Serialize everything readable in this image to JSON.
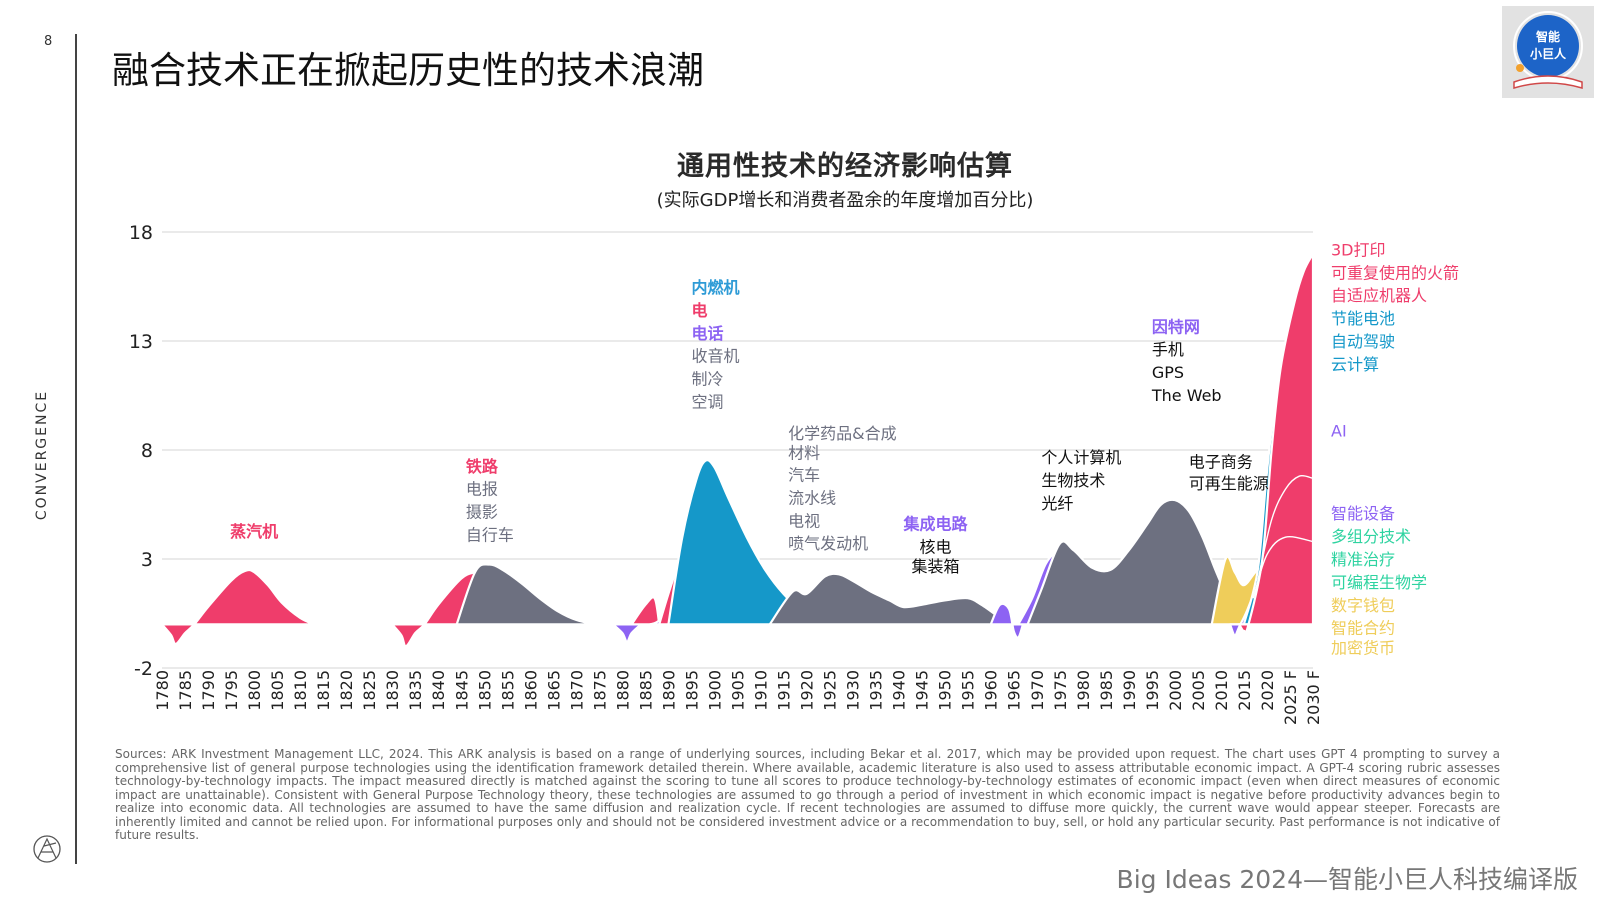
{
  "page": {
    "page_number": "8",
    "side_label": "CONVERGENCE",
    "title": "融合技术正在掀起历史性的技术浪潮",
    "badge_text_1": "智能",
    "badge_text_2": "小巨人",
    "sources": "Sources: ARK Investment Management LLC, 2024. This ARK analysis is based on a range of underlying sources, including Bekar et al. 2017, which may be provided upon request. The chart uses GPT 4 prompting to survey a comprehensive list of general purpose technologies using the identification framework detailed therein. Where available, academic literature is also used to assess attributable economic impact. A GPT-4 scoring rubric assesses technology-by-technology impacts. The impact measured directly is matched against the scoring to tune all scores to produce technology-by-technology estimates of economic impact (even when direct measures of economic impact are unattainable). Consistent with General Purpose Technology theory, these technologies are assumed to go through a period of investment in which economic impact is negative before productivity advances begin to realize into economic data. All technologies are assumed to have the same diffusion and realization cycle. If recent technologies are assumed to diffuse more quickly, the current wave would appear steeper. Forecasts are inherently limited and cannot be relied upon. For informational purposes only and should not be considered investment advice or a recommendation to buy, sell, or hold any particular security. Past performance is not indicative of future results.",
    "footer": "Big Ideas 2024—智能小巨人科技编译版"
  },
  "colors": {
    "pink": "#ef3d6b",
    "purple": "#8d63f3",
    "blue": "#1598c9",
    "gray": "#6d7080",
    "yellow": "#efcd5a",
    "green": "#2ed3a0",
    "blue_label": "#2e9bd6"
  },
  "chart_data": {
    "type": "area",
    "title": "通用性技术的经济影响估算",
    "subtitle": "(实际GDP增长和消费者盈余的年度增加百分比)",
    "ylim": [
      -2,
      18
    ],
    "y_ticks": [
      "18",
      "13",
      "8",
      "3",
      "-2"
    ],
    "x_ticks": [
      "1780",
      "1785",
      "1790",
      "1795",
      "1800",
      "1805",
      "1810",
      "1815",
      "1820",
      "1825",
      "1830",
      "1835",
      "1840",
      "1845",
      "1850",
      "1855",
      "1860",
      "1865",
      "1870",
      "1875",
      "1880",
      "1885",
      "1890",
      "1895",
      "1900",
      "1905",
      "1910",
      "1915",
      "1920",
      "1925",
      "1930",
      "1935",
      "1940",
      "1945",
      "1950",
      "1955",
      "1960",
      "1965",
      "1970",
      "1975",
      "1980",
      "1985",
      "1990",
      "1995",
      "2000",
      "2005",
      "2010",
      "2015",
      "2020",
      "2025 F",
      "2030 F"
    ],
    "grid": true,
    "series": [
      {
        "color": "pink",
        "points": [
          [
            1780,
            0
          ],
          [
            1782,
            -0.5
          ],
          [
            1783,
            -0.9
          ],
          [
            1785,
            -0.4
          ],
          [
            1787,
            0
          ],
          [
            1790,
            0.8
          ],
          [
            1795,
            2
          ],
          [
            1798,
            2.45
          ],
          [
            1800,
            2.4
          ],
          [
            1803,
            1.8
          ],
          [
            1806,
            1.0
          ],
          [
            1810,
            0.3
          ],
          [
            1813,
            0
          ]
        ]
      },
      {
        "color": "pink",
        "points": [
          [
            1830,
            0
          ],
          [
            1832,
            -0.5
          ],
          [
            1833,
            -1.0
          ],
          [
            1835,
            -0.4
          ],
          [
            1837,
            0
          ],
          [
            1840,
            0.9
          ],
          [
            1845,
            2.1
          ],
          [
            1848,
            2.4
          ],
          [
            1850,
            2.5
          ],
          [
            1853,
            2.1
          ],
          [
            1856,
            1.4
          ],
          [
            1860,
            0.6
          ],
          [
            1863,
            0
          ]
        ]
      },
      {
        "color": "gray",
        "points": [
          [
            1844,
            0
          ],
          [
            1848,
            2.4
          ],
          [
            1851,
            2.75
          ],
          [
            1854,
            2.5
          ],
          [
            1858,
            1.9
          ],
          [
            1862,
            1.2
          ],
          [
            1866,
            0.6
          ],
          [
            1870,
            0.2
          ],
          [
            1874,
            0
          ]
        ]
      },
      {
        "color": "purple",
        "points": [
          [
            1878,
            0
          ],
          [
            1880,
            -0.4
          ],
          [
            1881,
            -0.8
          ],
          [
            1882,
            -0.4
          ],
          [
            1884,
            0
          ]
        ]
      },
      {
        "color": "pink",
        "points": [
          [
            1882,
            0
          ],
          [
            1885,
            0.9
          ],
          [
            1887,
            1.2
          ],
          [
            1888,
            0
          ]
        ]
      },
      {
        "color": "purple",
        "points": [
          [
            1886,
            0
          ],
          [
            1888,
            0.2
          ],
          [
            1889,
            1.0
          ],
          [
            1891,
            1.9
          ],
          [
            1894,
            2.4
          ],
          [
            1897,
            2.2
          ],
          [
            1900,
            1.6
          ],
          [
            1904,
            0.8
          ],
          [
            1908,
            0.2
          ],
          [
            1911,
            0
          ]
        ]
      },
      {
        "color": "pink",
        "points": [
          [
            1888,
            0
          ],
          [
            1890,
            1.4
          ],
          [
            1893,
            3.3
          ],
          [
            1896,
            4.7
          ],
          [
            1898,
            5.0
          ],
          [
            1900,
            4.6
          ],
          [
            1903,
            3.4
          ],
          [
            1906,
            2.2
          ],
          [
            1910,
            1.0
          ],
          [
            1914,
            0.3
          ],
          [
            1917,
            0
          ]
        ]
      },
      {
        "color": "blue",
        "points": [
          [
            1890,
            0
          ],
          [
            1893,
            4.0
          ],
          [
            1896,
            6.6
          ],
          [
            1898,
            7.5
          ],
          [
            1900,
            7.2
          ],
          [
            1903,
            5.8
          ],
          [
            1907,
            4.0
          ],
          [
            1911,
            2.5
          ],
          [
            1915,
            1.4
          ],
          [
            1920,
            0.4
          ],
          [
            1923,
            0
          ]
        ]
      },
      {
        "color": "gray",
        "points": [
          [
            1912,
            0
          ],
          [
            1917,
            1.5
          ],
          [
            1920,
            1.4
          ],
          [
            1924,
            2.2
          ],
          [
            1927,
            2.3
          ],
          [
            1930,
            2.0
          ],
          [
            1934,
            1.5
          ],
          [
            1938,
            1.1
          ],
          [
            1941,
            0.8
          ],
          [
            1945,
            0.9
          ],
          [
            1950,
            1.1
          ],
          [
            1955,
            1.2
          ],
          [
            1958,
            0.9
          ],
          [
            1962,
            0.3
          ],
          [
            1964,
            0
          ]
        ]
      },
      {
        "color": "purple",
        "points": [
          [
            1960,
            0
          ],
          [
            1962,
            0.9
          ],
          [
            1964,
            0.7
          ],
          [
            1965,
            -0.3
          ],
          [
            1966,
            -0.6
          ],
          [
            1967,
            0
          ]
        ]
      },
      {
        "color": "purple",
        "points": [
          [
            1966,
            0
          ],
          [
            1969,
            1.2
          ],
          [
            1972,
            2.8
          ],
          [
            1975,
            3.4
          ],
          [
            1978,
            3.2
          ],
          [
            1981,
            2.4
          ],
          [
            1985,
            2.2
          ],
          [
            1988,
            2.6
          ],
          [
            1992,
            3.8
          ],
          [
            1996,
            4.8
          ],
          [
            2000,
            5.1
          ],
          [
            2003,
            4.5
          ],
          [
            2006,
            3.4
          ],
          [
            2009,
            1.8
          ],
          [
            2012,
            0.6
          ],
          [
            2014,
            0.2
          ],
          [
            2015,
            0
          ]
        ]
      },
      {
        "color": "gray",
        "points": [
          [
            1968,
            0
          ],
          [
            1971,
            1.6
          ],
          [
            1975,
            3.7
          ],
          [
            1978,
            3.4
          ],
          [
            1982,
            2.6
          ],
          [
            1986,
            2.5
          ],
          [
            1990,
            3.4
          ],
          [
            1994,
            4.6
          ],
          [
            1997,
            5.5
          ],
          [
            2000,
            5.7
          ],
          [
            2003,
            5.2
          ],
          [
            2006,
            4.0
          ],
          [
            2009,
            2.4
          ],
          [
            2012,
            1.0
          ],
          [
            2015,
            0.2
          ],
          [
            2016,
            0
          ]
        ]
      },
      {
        "color": "yellow",
        "points": [
          [
            2008,
            0
          ],
          [
            2011,
            3.0
          ],
          [
            2013,
            2.4
          ],
          [
            2015,
            1.8
          ],
          [
            2018,
            2.5
          ],
          [
            2022,
            2.8
          ],
          [
            2026,
            2.6
          ],
          [
            2030,
            2.5
          ]
        ]
      },
      {
        "color": "purple",
        "points": [
          [
            2012,
            0
          ],
          [
            2013,
            -0.5
          ],
          [
            2014,
            -0.1
          ],
          [
            2016,
            0.8
          ],
          [
            2018,
            2.2
          ],
          [
            2020,
            6.0
          ],
          [
            2022,
            9.5
          ],
          [
            2025,
            12.0
          ],
          [
            2028,
            13.2
          ],
          [
            2030,
            13.5
          ]
        ]
      },
      {
        "color": "blue",
        "points": [
          [
            2015,
            0
          ],
          [
            2018,
            2.5
          ],
          [
            2020,
            7.0
          ],
          [
            2022,
            10.5
          ],
          [
            2025,
            13.2
          ],
          [
            2028,
            14.6
          ],
          [
            2030,
            15.3
          ]
        ]
      },
      {
        "color": "pink",
        "points": [
          [
            2014,
            0
          ],
          [
            2015,
            -0.3
          ],
          [
            2016,
            0
          ],
          [
            2019,
            3.0
          ],
          [
            2021,
            8.0
          ],
          [
            2023,
            11.8
          ],
          [
            2026,
            14.8
          ],
          [
            2028,
            16.2
          ],
          [
            2030,
            17.0
          ]
        ]
      }
    ],
    "annotations": [
      {
        "x": 1800,
        "y": 4.0,
        "color": "pink",
        "bold": true,
        "text": "蒸汽机"
      },
      {
        "x": 1846,
        "y": 7.0,
        "color": "pink",
        "bold": true,
        "text": "铁路"
      },
      {
        "x": 1846,
        "y": 5.95,
        "color": "gray",
        "text": "电报"
      },
      {
        "x": 1846,
        "y": 4.9,
        "color": "gray",
        "text": "摄影"
      },
      {
        "x": 1846,
        "y": 3.85,
        "color": "gray",
        "text": "自行车"
      },
      {
        "x": 1895,
        "y": 15.2,
        "color": "blue_label",
        "bold": true,
        "text": "内燃机"
      },
      {
        "x": 1895,
        "y": 14.15,
        "color": "pink",
        "bold": true,
        "text": "电"
      },
      {
        "x": 1895,
        "y": 13.1,
        "color": "purple",
        "bold": true,
        "text": "电话"
      },
      {
        "x": 1895,
        "y": 12.05,
        "color": "gray",
        "text": "收音机"
      },
      {
        "x": 1895,
        "y": 11.0,
        "color": "gray",
        "text": "制冷"
      },
      {
        "x": 1895,
        "y": 9.95,
        "color": "gray",
        "text": "空调"
      },
      {
        "x": 1916,
        "y": 8.5,
        "color": "gray",
        "text": "化学药品&合成"
      },
      {
        "x": 1916,
        "y": 7.6,
        "color": "gray",
        "text": "材料"
      },
      {
        "x": 1916,
        "y": 6.6,
        "color": "gray",
        "text": "汽车"
      },
      {
        "x": 1916,
        "y": 5.55,
        "color": "gray",
        "text": "流水线"
      },
      {
        "x": 1916,
        "y": 4.5,
        "color": "gray",
        "text": "电视"
      },
      {
        "x": 1916,
        "y": 3.45,
        "color": "gray",
        "text": "喷气发动机"
      },
      {
        "x": 1948,
        "y": 4.35,
        "color": "purple",
        "bold": true,
        "text": "集成电路"
      },
      {
        "x": 1948,
        "y": 3.3,
        "color": "dark",
        "text": "核电"
      },
      {
        "x": 1948,
        "y": 2.4,
        "color": "dark",
        "text": "集装箱"
      },
      {
        "x": 1971,
        "y": 7.4,
        "color": "dark",
        "text": "个人计算机"
      },
      {
        "x": 1971,
        "y": 6.35,
        "color": "dark",
        "text": "生物技术"
      },
      {
        "x": 1971,
        "y": 5.3,
        "color": "dark",
        "text": "光纤"
      },
      {
        "x": 1995,
        "y": 13.4,
        "color": "purple",
        "bold": true,
        "text": "因特网"
      },
      {
        "x": 1995,
        "y": 12.35,
        "color": "dark",
        "text": "手机"
      },
      {
        "x": 1995,
        "y": 11.3,
        "color": "dark",
        "text": "GPS"
      },
      {
        "x": 1995,
        "y": 10.25,
        "color": "dark",
        "text": "The Web"
      },
      {
        "x": 2003,
        "y": 7.2,
        "color": "dark",
        "text": "电子商务"
      },
      {
        "x": 2003,
        "y": 6.2,
        "color": "dark",
        "text": "可再生能源"
      }
    ],
    "legend_placement": "right",
    "legend": [
      {
        "y": 17.2,
        "color": "pink",
        "text": "3D打印"
      },
      {
        "y": 16.15,
        "color": "pink",
        "text": "可重复使用的火箭"
      },
      {
        "y": 15.1,
        "color": "pink",
        "text": "自适应机器人"
      },
      {
        "y": 14.05,
        "color": "blue",
        "text": "节能电池"
      },
      {
        "y": 13.0,
        "color": "blue",
        "text": "自动驾驶"
      },
      {
        "y": 11.95,
        "color": "blue",
        "text": "云计算"
      },
      {
        "y": 8.9,
        "color": "purple",
        "text": "AI"
      },
      {
        "y": 5.1,
        "color": "purple",
        "text": "智能设备"
      },
      {
        "y": 4.05,
        "color": "green",
        "text": "多组分技术"
      },
      {
        "y": 3.0,
        "color": "green",
        "text": "精准治疗"
      },
      {
        "y": 1.95,
        "color": "green",
        "text": "可编程生物学"
      },
      {
        "y": 0.9,
        "color": "yellow",
        "text": "数字钱包"
      },
      {
        "y": -0.15,
        "color": "yellow",
        "text": "智能合约"
      },
      {
        "y": -1.05,
        "color": "yellow",
        "text": "加密货币"
      }
    ]
  }
}
